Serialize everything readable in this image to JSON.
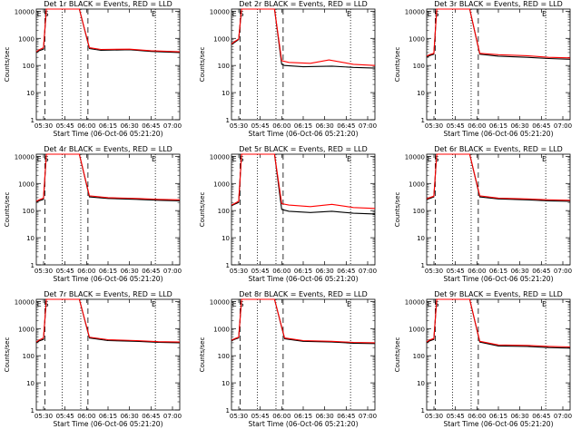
{
  "xlabel_template": "Start Time (06-Oct-06 05:21:20)",
  "ylabel": "Counts/sec",
  "x_ticks": [
    "05:30",
    "05:45",
    "06:00",
    "06:15",
    "06:30",
    "06:45",
    "07:00"
  ],
  "y_ticks": [
    "1",
    "10",
    "100",
    "1000",
    "10000"
  ],
  "colors": {
    "events": "#000000",
    "lld": "#ff0000"
  },
  "chart_data": [
    {
      "type": "line",
      "title": "Det 1r BLACK = Events, RED = LLD",
      "marks": [
        "E",
        "S",
        "E"
      ],
      "events": [
        [
          0,
          300
        ],
        [
          0.02,
          350
        ],
        [
          0.05,
          400
        ],
        [
          0.07,
          12000
        ],
        [
          0.3,
          12000
        ],
        [
          0.37,
          420
        ],
        [
          0.45,
          360
        ],
        [
          0.65,
          380
        ],
        [
          0.8,
          330
        ],
        [
          1.0,
          300
        ]
      ],
      "lld": [
        [
          0,
          320
        ],
        [
          0.02,
          380
        ],
        [
          0.05,
          450
        ],
        [
          0.07,
          13000
        ],
        [
          0.3,
          13000
        ],
        [
          0.37,
          450
        ],
        [
          0.45,
          390
        ],
        [
          0.65,
          400
        ],
        [
          0.8,
          350
        ],
        [
          1.0,
          320
        ]
      ]
    },
    {
      "type": "line",
      "title": "Det 2r BLACK = Events, RED = LLD",
      "marks": [
        "E",
        "S",
        "E"
      ],
      "events": [
        [
          0,
          600
        ],
        [
          0.02,
          700
        ],
        [
          0.05,
          900
        ],
        [
          0.07,
          12000
        ],
        [
          0.3,
          12000
        ],
        [
          0.35,
          110
        ],
        [
          0.37,
          100
        ],
        [
          0.5,
          90
        ],
        [
          0.7,
          95
        ],
        [
          0.85,
          85
        ],
        [
          1.0,
          80
        ]
      ],
      "lld": [
        [
          0,
          620
        ],
        [
          0.02,
          750
        ],
        [
          0.05,
          950
        ],
        [
          0.07,
          13000
        ],
        [
          0.3,
          13000
        ],
        [
          0.35,
          150
        ],
        [
          0.4,
          130
        ],
        [
          0.55,
          120
        ],
        [
          0.68,
          160
        ],
        [
          0.85,
          110
        ],
        [
          1.0,
          100
        ]
      ]
    },
    {
      "type": "line",
      "title": "Det 3r BLACK = Events, RED = LLD",
      "marks": [
        "E",
        "S",
        "E"
      ],
      "events": [
        [
          0,
          200
        ],
        [
          0.02,
          230
        ],
        [
          0.05,
          260
        ],
        [
          0.07,
          12000
        ],
        [
          0.3,
          12000
        ],
        [
          0.37,
          260
        ],
        [
          0.5,
          220
        ],
        [
          0.7,
          200
        ],
        [
          0.85,
          180
        ],
        [
          1.0,
          170
        ]
      ],
      "lld": [
        [
          0,
          220
        ],
        [
          0.02,
          250
        ],
        [
          0.05,
          280
        ],
        [
          0.07,
          13000
        ],
        [
          0.3,
          13000
        ],
        [
          0.37,
          280
        ],
        [
          0.5,
          250
        ],
        [
          0.7,
          230
        ],
        [
          0.85,
          200
        ],
        [
          1.0,
          190
        ]
      ]
    },
    {
      "type": "line",
      "title": "Det 4r BLACK = Events, RED = LLD",
      "marks": [
        "E",
        "S",
        "E"
      ],
      "events": [
        [
          0,
          200
        ],
        [
          0.02,
          230
        ],
        [
          0.05,
          260
        ],
        [
          0.07,
          12000
        ],
        [
          0.3,
          12000
        ],
        [
          0.37,
          320
        ],
        [
          0.5,
          280
        ],
        [
          0.7,
          260
        ],
        [
          0.85,
          240
        ],
        [
          1.0,
          230
        ]
      ],
      "lld": [
        [
          0,
          220
        ],
        [
          0.02,
          250
        ],
        [
          0.05,
          290
        ],
        [
          0.07,
          13000
        ],
        [
          0.3,
          13000
        ],
        [
          0.37,
          350
        ],
        [
          0.5,
          300
        ],
        [
          0.7,
          280
        ],
        [
          0.85,
          260
        ],
        [
          1.0,
          250
        ]
      ]
    },
    {
      "type": "line",
      "title": "Det 5r BLACK = Events, RED = LLD",
      "marks": [
        "E",
        "S",
        "E"
      ],
      "events": [
        [
          0,
          150
        ],
        [
          0.02,
          170
        ],
        [
          0.05,
          200
        ],
        [
          0.07,
          12000
        ],
        [
          0.3,
          12000
        ],
        [
          0.35,
          110
        ],
        [
          0.4,
          95
        ],
        [
          0.55,
          85
        ],
        [
          0.7,
          95
        ],
        [
          0.85,
          80
        ],
        [
          1.0,
          75
        ]
      ],
      "lld": [
        [
          0,
          160
        ],
        [
          0.02,
          180
        ],
        [
          0.05,
          220
        ],
        [
          0.07,
          13000
        ],
        [
          0.3,
          13000
        ],
        [
          0.35,
          180
        ],
        [
          0.4,
          160
        ],
        [
          0.55,
          140
        ],
        [
          0.7,
          170
        ],
        [
          0.85,
          130
        ],
        [
          1.0,
          120
        ]
      ]
    },
    {
      "type": "line",
      "title": "Det 6r BLACK = Events, RED = LLD",
      "marks": [
        "E",
        "S",
        "E"
      ],
      "events": [
        [
          0,
          250
        ],
        [
          0.02,
          280
        ],
        [
          0.05,
          320
        ],
        [
          0.07,
          12000
        ],
        [
          0.3,
          12000
        ],
        [
          0.37,
          320
        ],
        [
          0.5,
          270
        ],
        [
          0.7,
          250
        ],
        [
          0.85,
          230
        ],
        [
          1.0,
          220
        ]
      ],
      "lld": [
        [
          0,
          270
        ],
        [
          0.02,
          300
        ],
        [
          0.05,
          340
        ],
        [
          0.07,
          13000
        ],
        [
          0.3,
          13000
        ],
        [
          0.37,
          350
        ],
        [
          0.5,
          290
        ],
        [
          0.7,
          270
        ],
        [
          0.85,
          250
        ],
        [
          1.0,
          240
        ]
      ]
    },
    {
      "type": "line",
      "title": "Det 7r BLACK = Events, RED = LLD",
      "marks": [
        "E",
        "S",
        "E"
      ],
      "events": [
        [
          0,
          300
        ],
        [
          0.02,
          350
        ],
        [
          0.05,
          400
        ],
        [
          0.07,
          12000
        ],
        [
          0.3,
          12000
        ],
        [
          0.37,
          450
        ],
        [
          0.5,
          360
        ],
        [
          0.7,
          340
        ],
        [
          0.85,
          310
        ],
        [
          1.0,
          300
        ]
      ],
      "lld": [
        [
          0,
          320
        ],
        [
          0.02,
          380
        ],
        [
          0.05,
          450
        ],
        [
          0.07,
          13000
        ],
        [
          0.3,
          13000
        ],
        [
          0.37,
          480
        ],
        [
          0.5,
          390
        ],
        [
          0.7,
          360
        ],
        [
          0.85,
          330
        ],
        [
          1.0,
          320
        ]
      ]
    },
    {
      "type": "line",
      "title": "Det 8r BLACK = Events, RED = LLD",
      "marks": [
        "E",
        "S",
        "E"
      ],
      "events": [
        [
          0,
          350
        ],
        [
          0.02,
          400
        ],
        [
          0.05,
          450
        ],
        [
          0.07,
          12000
        ],
        [
          0.3,
          12000
        ],
        [
          0.37,
          420
        ],
        [
          0.5,
          340
        ],
        [
          0.7,
          320
        ],
        [
          0.85,
          290
        ],
        [
          1.0,
          280
        ]
      ],
      "lld": [
        [
          0,
          370
        ],
        [
          0.02,
          420
        ],
        [
          0.05,
          480
        ],
        [
          0.07,
          13000
        ],
        [
          0.3,
          13000
        ],
        [
          0.37,
          450
        ],
        [
          0.5,
          360
        ],
        [
          0.7,
          340
        ],
        [
          0.85,
          310
        ],
        [
          1.0,
          300
        ]
      ]
    },
    {
      "type": "line",
      "title": "Det 9r BLACK = Events, RED = LLD",
      "marks": [
        "E",
        "S",
        "E"
      ],
      "events": [
        [
          0,
          300
        ],
        [
          0.02,
          350
        ],
        [
          0.05,
          400
        ],
        [
          0.07,
          12000
        ],
        [
          0.3,
          12000
        ],
        [
          0.37,
          320
        ],
        [
          0.5,
          230
        ],
        [
          0.7,
          220
        ],
        [
          0.85,
          200
        ],
        [
          1.0,
          190
        ]
      ],
      "lld": [
        [
          0,
          320
        ],
        [
          0.02,
          380
        ],
        [
          0.05,
          430
        ],
        [
          0.07,
          13000
        ],
        [
          0.3,
          13000
        ],
        [
          0.37,
          340
        ],
        [
          0.5,
          250
        ],
        [
          0.7,
          240
        ],
        [
          0.85,
          220
        ],
        [
          1.0,
          210
        ]
      ]
    }
  ]
}
